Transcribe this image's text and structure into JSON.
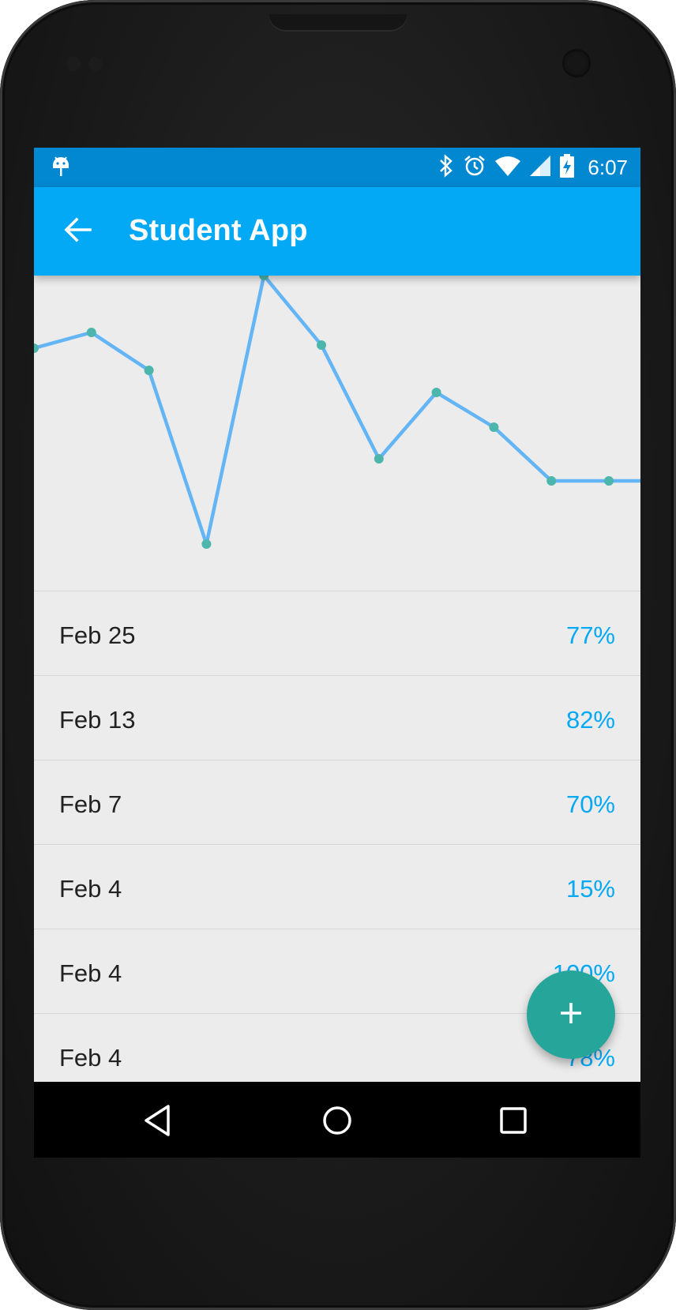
{
  "status_bar": {
    "time": "6:07",
    "icons": [
      "android-icon",
      "bluetooth-icon",
      "alarm-icon",
      "wifi-icon",
      "signal-icon",
      "battery-charging-icon"
    ]
  },
  "app_bar": {
    "title": "Student App",
    "back_icon": "arrow-back-icon"
  },
  "colors": {
    "status_bar": "#0288d1",
    "app_bar": "#03a9f4",
    "line": "#64b5f6",
    "point": "#4db6ac",
    "percent_text": "#03a9f4",
    "fab": "#26a69a",
    "background": "#ececec"
  },
  "chart_data": {
    "type": "line",
    "series": [
      {
        "values": [
          77,
          82,
          70,
          15,
          100,
          78,
          42,
          63,
          52,
          35,
          35
        ]
      }
    ],
    "ylim": [
      0,
      100
    ],
    "grid": false
  },
  "grades": [
    {
      "date": "Feb 25",
      "percent": "77%"
    },
    {
      "date": "Feb 13",
      "percent": "82%"
    },
    {
      "date": "Feb 7",
      "percent": "70%"
    },
    {
      "date": "Feb 4",
      "percent": "15%"
    },
    {
      "date": "Feb 4",
      "percent": "100%"
    },
    {
      "date": "Feb 4",
      "percent": "78%"
    }
  ],
  "fab": {
    "icon": "plus-icon"
  },
  "nav_bar": {
    "icons": [
      "back-triangle-icon",
      "home-circle-icon",
      "recents-square-icon"
    ]
  }
}
